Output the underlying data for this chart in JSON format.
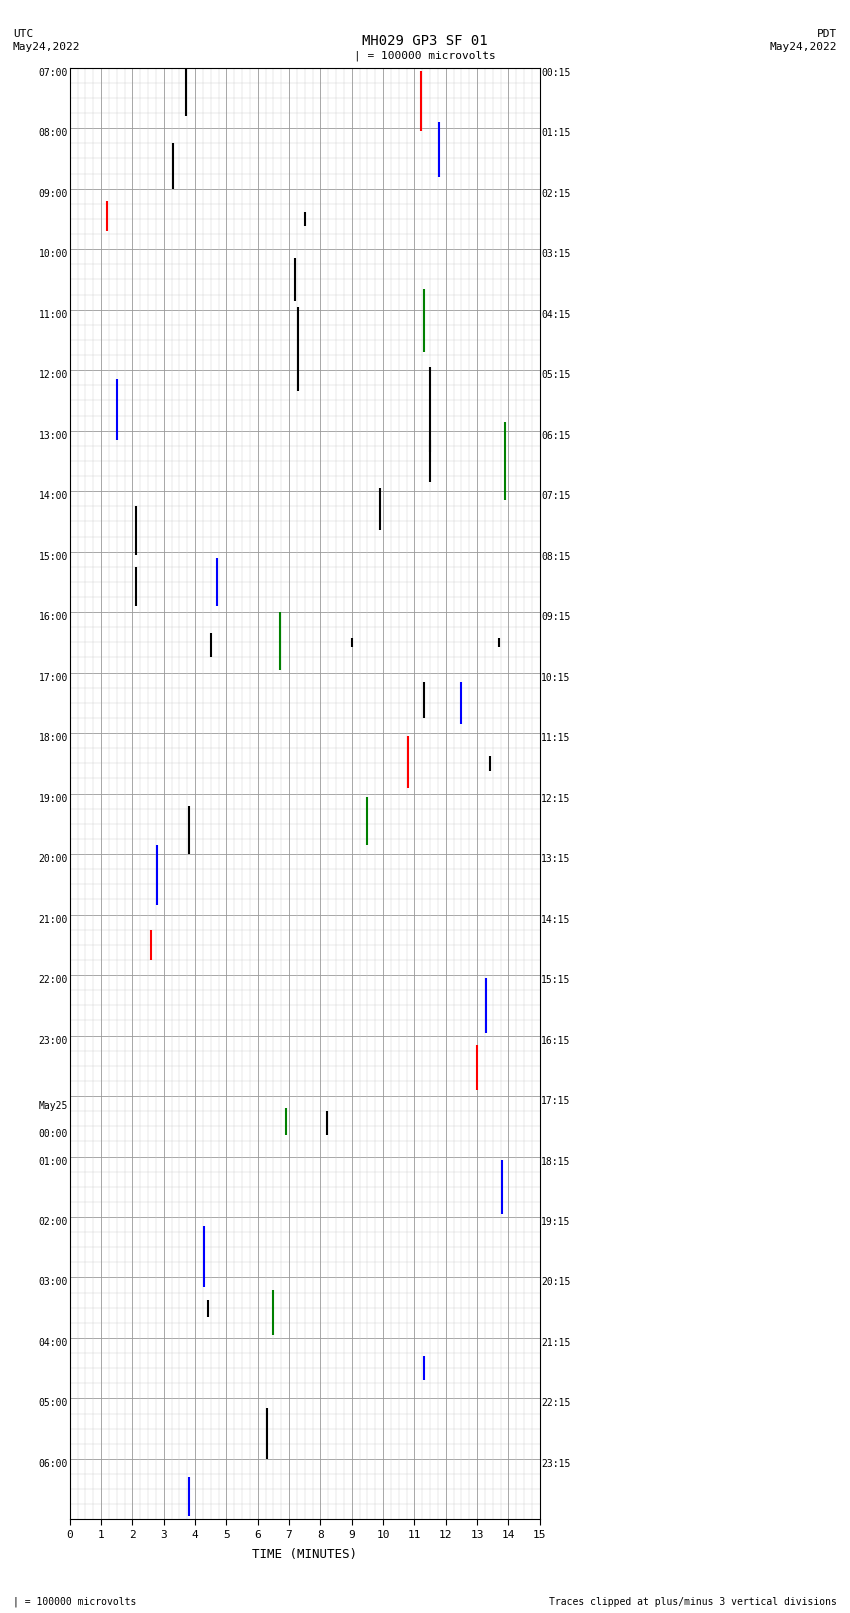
{
  "title": "MH029 GP3 SF 01",
  "scale_label": "| = 100000 microvolts",
  "bottom_note": "Traces clipped at plus/minus 3 vertical divisions",
  "xlabel": "TIME (MINUTES)",
  "x_min": 0,
  "x_max": 15,
  "x_ticks": [
    0,
    1,
    2,
    3,
    4,
    5,
    6,
    7,
    8,
    9,
    10,
    11,
    12,
    13,
    14,
    15
  ],
  "num_rows": 24,
  "row_labels_left": [
    "07:00",
    "08:00",
    "09:00",
    "10:00",
    "11:00",
    "12:00",
    "13:00",
    "14:00",
    "15:00",
    "16:00",
    "17:00",
    "18:00",
    "19:00",
    "20:00",
    "21:00",
    "22:00",
    "23:00",
    "May25\n00:00",
    "01:00",
    "02:00",
    "03:00",
    "04:00",
    "05:00",
    "06:00"
  ],
  "row_labels_right": [
    "00:15",
    "01:15",
    "02:15",
    "03:15",
    "04:15",
    "05:15",
    "06:15",
    "07:15",
    "08:15",
    "09:15",
    "10:15",
    "11:15",
    "12:15",
    "13:15",
    "14:15",
    "15:15",
    "16:15",
    "17:15",
    "18:15",
    "19:15",
    "20:15",
    "21:15",
    "22:15",
    "23:15"
  ],
  "spikes": [
    {
      "row": 0,
      "x": 3.7,
      "ylo": -0.3,
      "yhi": 0.7,
      "color": "black"
    },
    {
      "row": 0,
      "x": 11.2,
      "ylo": -0.55,
      "yhi": 0.45,
      "color": "red"
    },
    {
      "row": 1,
      "x": 3.3,
      "ylo": -0.5,
      "yhi": 0.25,
      "color": "black"
    },
    {
      "row": 1,
      "x": 11.8,
      "ylo": -0.3,
      "yhi": 0.6,
      "color": "blue"
    },
    {
      "row": 2,
      "x": 1.2,
      "ylo": -0.2,
      "yhi": 0.3,
      "color": "red"
    },
    {
      "row": 2,
      "x": 7.5,
      "ylo": -0.12,
      "yhi": 0.12,
      "color": "black"
    },
    {
      "row": 3,
      "x": 7.2,
      "ylo": -0.35,
      "yhi": 0.35,
      "color": "black"
    },
    {
      "row": 4,
      "x": 7.3,
      "ylo": -0.85,
      "yhi": 0.55,
      "color": "black"
    },
    {
      "row": 4,
      "x": 11.3,
      "ylo": -0.2,
      "yhi": 0.85,
      "color": "green"
    },
    {
      "row": 5,
      "x": 1.5,
      "ylo": -0.65,
      "yhi": 0.35,
      "color": "blue"
    },
    {
      "row": 5,
      "x": 11.5,
      "ylo": -0.85,
      "yhi": 0.55,
      "color": "black"
    },
    {
      "row": 6,
      "x": 11.5,
      "ylo": -0.35,
      "yhi": 0.35,
      "color": "black"
    },
    {
      "row": 6,
      "x": 13.9,
      "ylo": -0.65,
      "yhi": 0.65,
      "color": "green"
    },
    {
      "row": 7,
      "x": 2.1,
      "ylo": -0.55,
      "yhi": 0.25,
      "color": "black"
    },
    {
      "row": 7,
      "x": 9.9,
      "ylo": -0.15,
      "yhi": 0.55,
      "color": "black"
    },
    {
      "row": 8,
      "x": 2.1,
      "ylo": -0.4,
      "yhi": 0.25,
      "color": "black"
    },
    {
      "row": 8,
      "x": 4.7,
      "ylo": -0.4,
      "yhi": 0.4,
      "color": "blue"
    },
    {
      "row": 9,
      "x": 4.5,
      "ylo": -0.25,
      "yhi": 0.15,
      "color": "black"
    },
    {
      "row": 9,
      "x": 6.7,
      "ylo": -0.45,
      "yhi": 0.5,
      "color": "green"
    },
    {
      "row": 9,
      "x": 9.0,
      "ylo": -0.08,
      "yhi": 0.08,
      "color": "black"
    },
    {
      "row": 9,
      "x": 13.7,
      "ylo": -0.08,
      "yhi": 0.08,
      "color": "black"
    },
    {
      "row": 10,
      "x": 11.3,
      "ylo": -0.25,
      "yhi": 0.35,
      "color": "black"
    },
    {
      "row": 10,
      "x": 12.5,
      "ylo": -0.35,
      "yhi": 0.35,
      "color": "blue"
    },
    {
      "row": 11,
      "x": 10.8,
      "ylo": -0.4,
      "yhi": 0.45,
      "color": "red"
    },
    {
      "row": 11,
      "x": 13.4,
      "ylo": -0.12,
      "yhi": 0.12,
      "color": "black"
    },
    {
      "row": 12,
      "x": 3.8,
      "ylo": -0.5,
      "yhi": 0.3,
      "color": "black"
    },
    {
      "row": 12,
      "x": 9.5,
      "ylo": -0.35,
      "yhi": 0.45,
      "color": "green"
    },
    {
      "row": 13,
      "x": 2.8,
      "ylo": -0.35,
      "yhi": 0.65,
      "color": "blue"
    },
    {
      "row": 14,
      "x": 2.6,
      "ylo": -0.25,
      "yhi": 0.25,
      "color": "red"
    },
    {
      "row": 15,
      "x": 13.3,
      "ylo": -0.45,
      "yhi": 0.45,
      "color": "blue"
    },
    {
      "row": 16,
      "x": 13.0,
      "ylo": -0.4,
      "yhi": 0.35,
      "color": "red"
    },
    {
      "row": 17,
      "x": 6.9,
      "ylo": -0.15,
      "yhi": 0.3,
      "color": "green"
    },
    {
      "row": 17,
      "x": 8.2,
      "ylo": -0.15,
      "yhi": 0.25,
      "color": "black"
    },
    {
      "row": 18,
      "x": 13.8,
      "ylo": -0.45,
      "yhi": 0.45,
      "color": "blue"
    },
    {
      "row": 19,
      "x": 4.3,
      "ylo": -0.65,
      "yhi": 0.35,
      "color": "blue"
    },
    {
      "row": 20,
      "x": 4.4,
      "ylo": -0.15,
      "yhi": 0.12,
      "color": "black"
    },
    {
      "row": 20,
      "x": 6.5,
      "ylo": -0.45,
      "yhi": 0.3,
      "color": "green"
    },
    {
      "row": 21,
      "x": 11.3,
      "ylo": -0.2,
      "yhi": 0.2,
      "color": "blue"
    },
    {
      "row": 22,
      "x": 6.3,
      "ylo": -0.5,
      "yhi": 0.35,
      "color": "black"
    },
    {
      "row": 23,
      "x": 3.8,
      "ylo": -0.45,
      "yhi": 0.2,
      "color": "blue"
    }
  ],
  "bg_color": "white",
  "grid_major_color": "#999999",
  "grid_minor_color": "#cccccc",
  "border_color": "black",
  "minor_per_major": 4
}
